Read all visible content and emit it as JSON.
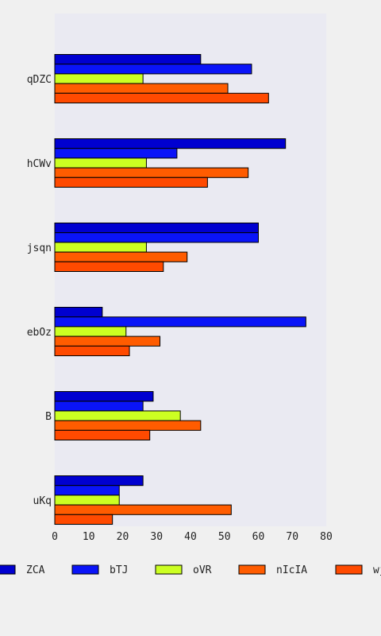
{
  "chart_data": {
    "type": "bar",
    "orientation": "horizontal",
    "title": "",
    "xlabel": "",
    "ylabel": "",
    "xlim": [
      0,
      80
    ],
    "x_ticks": [
      0,
      10,
      20,
      30,
      40,
      50,
      60,
      70,
      80
    ],
    "grid": false,
    "legend_position": "bottom",
    "categories": [
      "qDZC",
      "hCWv",
      "jsqn",
      "ebOz",
      "B",
      "uKq"
    ],
    "series": [
      {
        "name": "ZCA",
        "color": "#0000d0",
        "values": [
          43,
          68,
          60,
          14,
          29,
          26
        ]
      },
      {
        "name": "bTJ",
        "color": "#0a14f8",
        "values": [
          58,
          36,
          60,
          74,
          26,
          19
        ]
      },
      {
        "name": "oVR",
        "color": "#ccff22",
        "values": [
          26,
          27,
          27,
          21,
          37,
          19
        ]
      },
      {
        "name": "nIcIA",
        "color": "#ff5c00",
        "values": [
          51,
          57,
          39,
          31,
          43,
          52
        ]
      },
      {
        "name": "wj",
        "color": "#ff4a00",
        "values": [
          63,
          45,
          32,
          22,
          28,
          17
        ]
      }
    ],
    "plot_background": "#eaeaf2"
  }
}
